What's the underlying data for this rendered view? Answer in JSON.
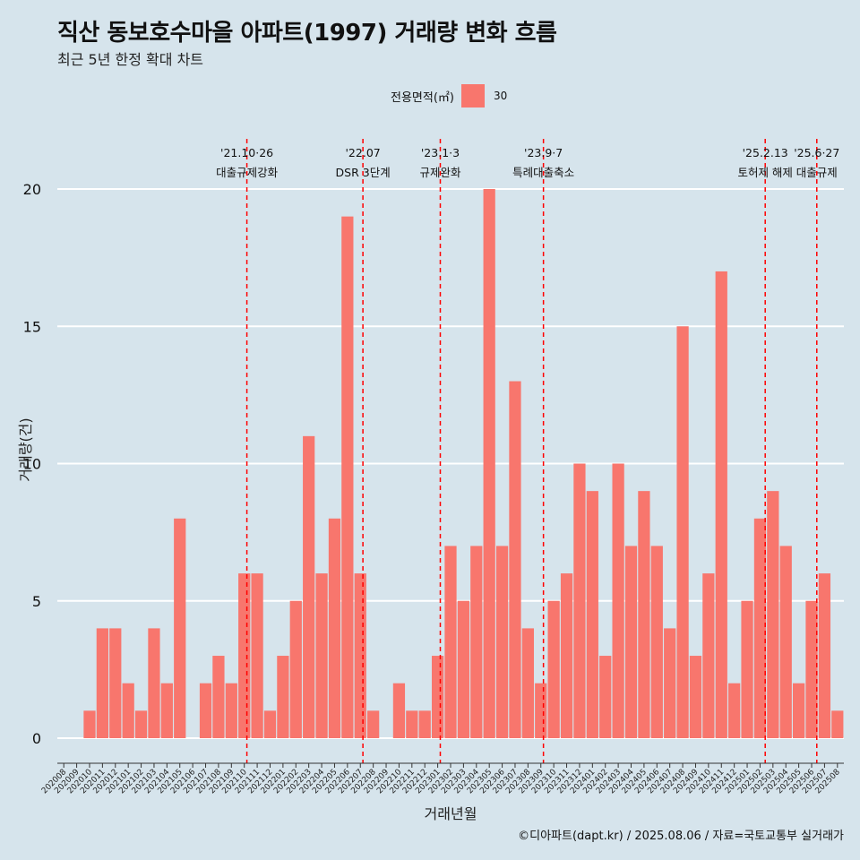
{
  "header": {
    "title": "직산 동보호수마을 아파트(1997) 거래량 변화 흐름",
    "subtitle": "최근 5년 한정 확대 차트"
  },
  "legend": {
    "title": "전용면적(㎡)",
    "items": [
      {
        "label": "30",
        "color": "#f8766d"
      }
    ]
  },
  "caption": "©디아파트(dapt.kr) / 2025.08.06 / 자료=국토교통부 실거래가",
  "chart_data": {
    "type": "bar",
    "title": "직산 동보호수마을 아파트(1997) 거래량 변화 흐름",
    "subtitle": "최근 5년 한정 확대 차트",
    "xlabel": "거래년월",
    "ylabel": "거래량(건)",
    "ylim": [
      0,
      20
    ],
    "yticks": [
      0,
      5,
      10,
      15,
      20
    ],
    "grid": true,
    "legend_position": "top",
    "bar_color": "#f8766d",
    "categories": [
      "202008",
      "202009",
      "202010",
      "202011",
      "202012",
      "202101",
      "202102",
      "202103",
      "202104",
      "202105",
      "202106",
      "202107",
      "202108",
      "202109",
      "202110",
      "202111",
      "202112",
      "202201",
      "202202",
      "202203",
      "202204",
      "202205",
      "202206",
      "202207",
      "202208",
      "202209",
      "202210",
      "202211",
      "202212",
      "202301",
      "202302",
      "202303",
      "202304",
      "202305",
      "202306",
      "202307",
      "202308",
      "202309",
      "202310",
      "202311",
      "202312",
      "202401",
      "202402",
      "202403",
      "202404",
      "202405",
      "202406",
      "202407",
      "202408",
      "202409",
      "202410",
      "202411",
      "202412",
      "202501",
      "202502",
      "202503",
      "202504",
      "202505",
      "202506",
      "202507",
      "202508"
    ],
    "series": [
      {
        "name": "30",
        "values": [
          0,
          0,
          1,
          4,
          4,
          2,
          1,
          4,
          2,
          8,
          0,
          2,
          3,
          2,
          6,
          6,
          1,
          3,
          5,
          11,
          6,
          8,
          19,
          6,
          1,
          0,
          2,
          1,
          1,
          3,
          7,
          5,
          7,
          20,
          7,
          13,
          4,
          2,
          5,
          6,
          10,
          9,
          3,
          10,
          7,
          9,
          7,
          4,
          15,
          3,
          6,
          17,
          2,
          5,
          8,
          9,
          7,
          2,
          5,
          6,
          1
        ]
      }
    ],
    "events": [
      {
        "date": "'21.10·26",
        "label": "대출규제강화",
        "position": 14.2
      },
      {
        "date": "'22.07",
        "label": "DSR 3단계",
        "position": 23.2
      },
      {
        "date": "'23.1·3",
        "label": "규제완화",
        "position": 29.2
      },
      {
        "date": "'23.9·7",
        "label": "특례대출축소",
        "position": 37.2
      },
      {
        "date": "'25.2.13",
        "label": "토허제 해제",
        "position": 54.4
      },
      {
        "date": "'25.6·27",
        "label": "대출규제",
        "position": 58.4
      }
    ]
  }
}
